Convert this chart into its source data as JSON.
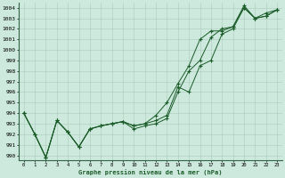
{
  "xlabel": "Graphe pression niveau de la mer (hPa)",
  "bg_color": "#cde8dd",
  "grid_color": "#aaccbb",
  "line_color": "#1a5c28",
  "ylim": [
    989.5,
    1004.5
  ],
  "xlim": [
    -0.5,
    23.5
  ],
  "yticks": [
    990,
    991,
    992,
    993,
    994,
    995,
    996,
    997,
    998,
    999,
    1000,
    1001,
    1002,
    1003,
    1004
  ],
  "xticks": [
    0,
    1,
    2,
    3,
    4,
    5,
    6,
    7,
    8,
    9,
    10,
    11,
    12,
    13,
    14,
    15,
    16,
    17,
    18,
    19,
    20,
    21,
    22,
    23
  ],
  "series": [
    [
      994.0,
      992.0,
      989.8,
      993.3,
      992.2,
      990.8,
      992.5,
      992.8,
      993.0,
      993.2,
      992.8,
      993.0,
      993.3,
      993.8,
      996.5,
      996.0,
      998.5,
      999.0,
      1001.5,
      1002.0,
      1004.0,
      1003.0,
      1003.2,
      1003.8
    ],
    [
      994.0,
      992.0,
      989.8,
      993.3,
      992.2,
      990.8,
      992.5,
      992.8,
      993.0,
      993.2,
      992.8,
      993.0,
      993.8,
      995.0,
      996.8,
      998.5,
      1001.0,
      1001.8,
      1001.8,
      1002.2,
      1004.2,
      1003.0,
      1003.5,
      1003.8
    ],
    [
      994.0,
      992.0,
      989.8,
      993.3,
      992.2,
      990.8,
      992.5,
      992.8,
      993.0,
      993.2,
      992.5,
      992.8,
      993.0,
      993.5,
      996.0,
      998.0,
      999.0,
      1001.2,
      1002.0,
      1002.2,
      1004.0,
      1003.0,
      1003.2,
      1003.8
    ]
  ]
}
